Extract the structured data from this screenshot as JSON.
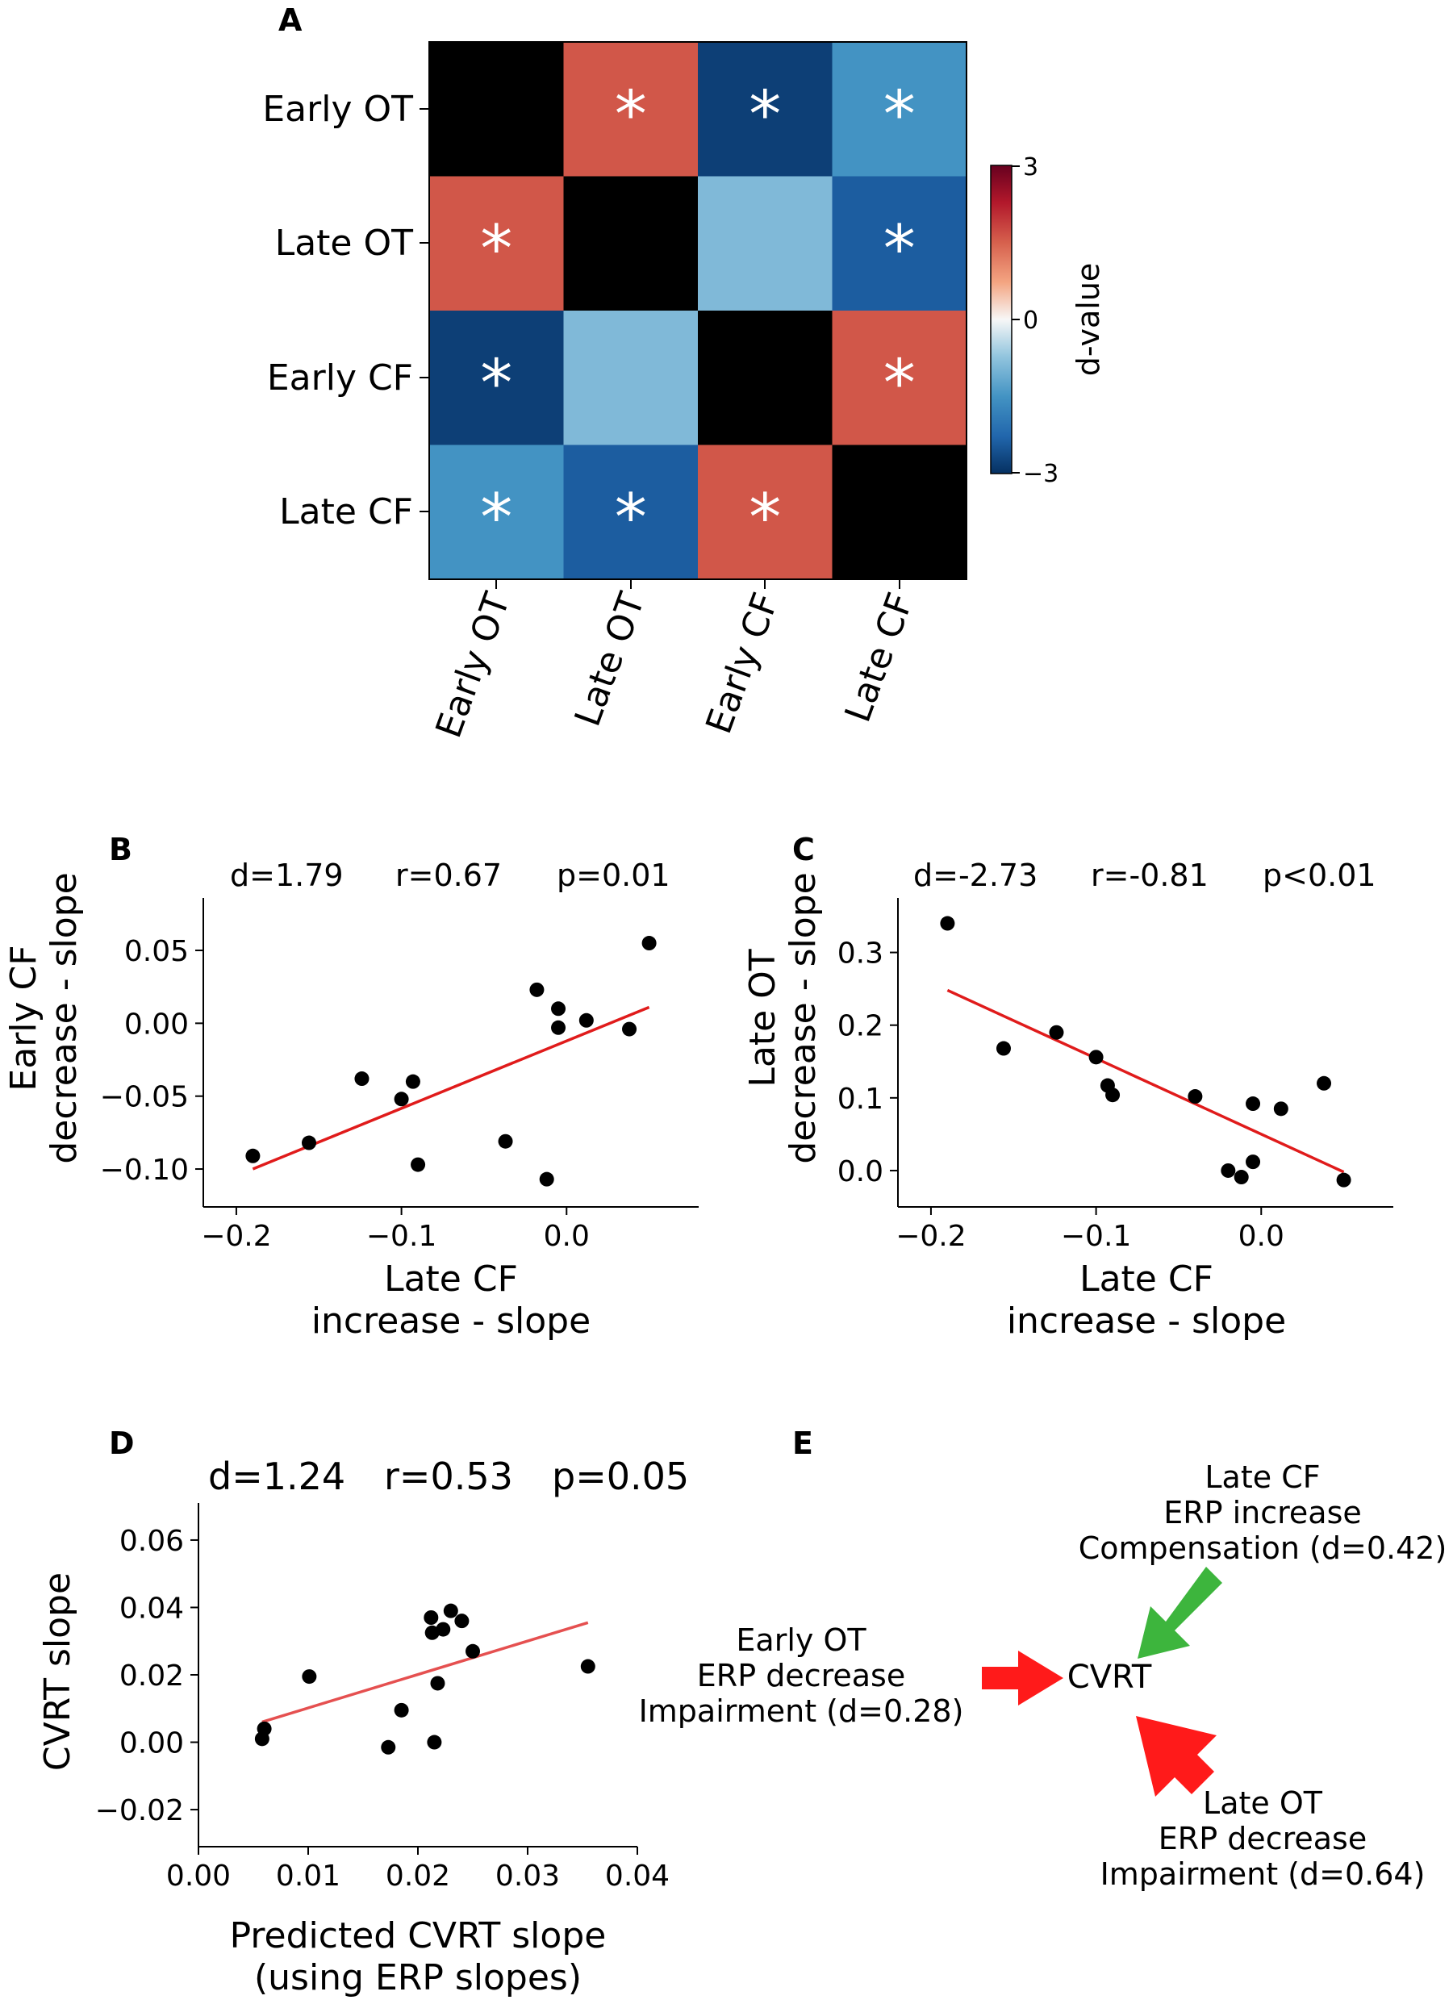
{
  "chart_data": [
    {
      "panel": "A",
      "type": "heatmap",
      "rows": [
        "Early OT",
        "Late OT",
        "Early CF",
        "Late CF"
      ],
      "columns": [
        "Early OT",
        "Late OT",
        "Early CF",
        "Late CF"
      ],
      "values": [
        [
          null,
          1.6,
          -2.8,
          -1.5
        ],
        [
          1.6,
          null,
          -0.9,
          -2.4
        ],
        [
          -2.8,
          -0.9,
          null,
          1.6
        ],
        [
          -1.5,
          -2.4,
          1.6,
          null
        ]
      ],
      "significant": [
        [
          false,
          true,
          true,
          true
        ],
        [
          true,
          false,
          false,
          true
        ],
        [
          true,
          false,
          false,
          true
        ],
        [
          true,
          true,
          true,
          false
        ]
      ],
      "marker": "*",
      "colorbar": {
        "label": "d-value",
        "min": -3,
        "max": 3,
        "ticks": [
          "3",
          "0",
          "−3"
        ]
      }
    },
    {
      "panel": "B",
      "type": "scatter",
      "xlabel_lines": [
        "Late CF",
        "increase - slope"
      ],
      "ylabel_lines": [
        "Early CF",
        "decrease - slope"
      ],
      "stats": [
        "d=1.79",
        "r=0.67",
        "p=0.01"
      ],
      "xlim": [
        -0.22,
        0.08
      ],
      "ylim": [
        -0.126,
        0.086
      ],
      "xticks": [
        -0.2,
        -0.1,
        0.0
      ],
      "xtick_labels": [
        "−0.2",
        "−0.1",
        "0.0"
      ],
      "yticks": [
        0.05,
        0.0,
        -0.05,
        -0.1
      ],
      "ytick_labels": [
        "0.05",
        "0.00",
        "−0.05",
        "−0.10"
      ],
      "points": [
        [
          -0.19,
          -0.091
        ],
        [
          -0.156,
          -0.082
        ],
        [
          -0.124,
          -0.038
        ],
        [
          -0.1,
          -0.052
        ],
        [
          -0.093,
          -0.04
        ],
        [
          -0.09,
          -0.097
        ],
        [
          -0.037,
          -0.081
        ],
        [
          -0.012,
          -0.107
        ],
        [
          -0.018,
          0.023
        ],
        [
          -0.005,
          0.01
        ],
        [
          -0.005,
          -0.003
        ],
        [
          0.012,
          0.002
        ],
        [
          0.038,
          -0.004
        ],
        [
          0.05,
          0.055
        ]
      ],
      "fit_line": [
        [
          -0.19,
          -0.1
        ],
        [
          0.05,
          0.011
        ]
      ]
    },
    {
      "panel": "C",
      "type": "scatter",
      "xlabel_lines": [
        "Late CF",
        "increase - slope"
      ],
      "ylabel_lines": [
        "Late OT",
        "decrease - slope"
      ],
      "stats": [
        "d=-2.73",
        "r=-0.81",
        "p<0.01"
      ],
      "xlim": [
        -0.22,
        0.08
      ],
      "ylim": [
        -0.05,
        0.375
      ],
      "xticks": [
        -0.2,
        -0.1,
        0.0
      ],
      "xtick_labels": [
        "−0.2",
        "−0.1",
        "0.0"
      ],
      "yticks": [
        0.3,
        0.2,
        0.1,
        0.0
      ],
      "ytick_labels": [
        "0.3",
        "0.2",
        "0.1",
        "0.0"
      ],
      "points": [
        [
          -0.19,
          0.34
        ],
        [
          -0.156,
          0.168
        ],
        [
          -0.124,
          0.19
        ],
        [
          -0.1,
          0.156
        ],
        [
          -0.093,
          0.117
        ],
        [
          -0.09,
          0.104
        ],
        [
          -0.04,
          0.102
        ],
        [
          -0.02,
          0.0
        ],
        [
          -0.012,
          -0.009
        ],
        [
          -0.005,
          0.012
        ],
        [
          -0.005,
          0.092
        ],
        [
          0.012,
          0.085
        ],
        [
          0.038,
          0.12
        ],
        [
          0.05,
          -0.013
        ]
      ],
      "fit_line": [
        [
          -0.19,
          0.248
        ],
        [
          0.05,
          -0.002
        ]
      ]
    },
    {
      "panel": "D",
      "type": "scatter",
      "xlabel_lines": [
        "Predicted CVRT slope",
        "(using ERP slopes)"
      ],
      "ylabel_lines": [
        "CVRT slope"
      ],
      "stats": [
        "d=1.24",
        "r=0.53",
        "p=0.05"
      ],
      "xlim": [
        0.0,
        0.04
      ],
      "ylim": [
        -0.031,
        0.071
      ],
      "xticks": [
        0.0,
        0.01,
        0.02,
        0.03,
        0.04
      ],
      "xtick_labels": [
        "0.00",
        "0.01",
        "0.02",
        "0.03",
        "0.04"
      ],
      "yticks": [
        0.06,
        0.04,
        0.02,
        0.0,
        -0.02
      ],
      "ytick_labels": [
        "0.06",
        "0.04",
        "0.02",
        "0.00",
        "−0.02"
      ],
      "points": [
        [
          0.0058,
          0.001
        ],
        [
          0.006,
          0.004
        ],
        [
          0.0101,
          0.0195
        ],
        [
          0.0173,
          -0.0015
        ],
        [
          0.0185,
          0.0095
        ],
        [
          0.0212,
          0.037
        ],
        [
          0.0213,
          0.0325
        ],
        [
          0.0215,
          0.0
        ],
        [
          0.0218,
          0.0175
        ],
        [
          0.0223,
          0.0335
        ],
        [
          0.023,
          0.039
        ],
        [
          0.024,
          0.036
        ],
        [
          0.025,
          0.027
        ],
        [
          0.0355,
          0.0225
        ]
      ],
      "fit_line": [
        [
          0.0058,
          0.006
        ],
        [
          0.0355,
          0.0355
        ]
      ]
    }
  ],
  "diagram": {
    "panel": "E",
    "center": "CVRT",
    "green": {
      "lines": [
        "Late CF",
        "ERP increase",
        "Compensation (d=0.42)"
      ],
      "color": "#3db53d"
    },
    "left": {
      "lines": [
        "Early OT",
        "ERP decrease",
        "Impairment (d=0.28)"
      ],
      "color": "#ff1a1a"
    },
    "bottom": {
      "lines": [
        "Late OT",
        "ERP decrease",
        "Impairment (d=0.64)"
      ],
      "color": "#ff1a1a"
    }
  },
  "colors": {
    "fit_line": "#e01b1b",
    "fit_line_d": "#e55050",
    "dot": "#000000",
    "diag": "#000000"
  }
}
